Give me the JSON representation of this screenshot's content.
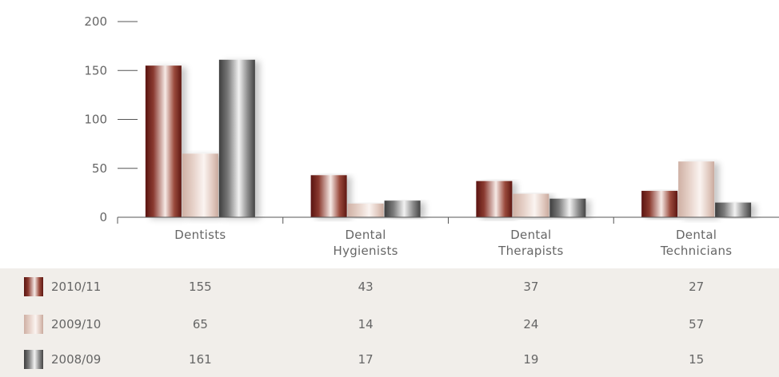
{
  "chart_data": {
    "type": "bar",
    "categories": [
      "Dentists",
      "Dental\nHygienists",
      "Dental\nTherapists",
      "Dental\nTechnicians"
    ],
    "series": [
      {
        "name": "2010/11",
        "values": [
          155,
          43,
          37,
          27
        ]
      },
      {
        "name": "2009/10",
        "values": [
          65,
          14,
          24,
          57
        ]
      },
      {
        "name": "2008/09",
        "values": [
          161,
          17,
          19,
          15
        ]
      }
    ],
    "ylim": [
      0,
      200
    ],
    "yticks": [
      0,
      50,
      100,
      150,
      200
    ],
    "xlabel": "",
    "ylabel": "",
    "grid": false,
    "legend": "table-below"
  },
  "table": {
    "rows": [
      {
        "label": "2010/11",
        "values": [
          "155",
          "43",
          "37",
          "27"
        ]
      },
      {
        "label": "2009/10",
        "values": [
          "65",
          "14",
          "24",
          "57"
        ]
      },
      {
        "label": "2008/09",
        "values": [
          "161",
          "17",
          "19",
          "15"
        ]
      }
    ]
  },
  "colors": {
    "series": [
      "#7a2a24",
      "#dcc3b8",
      "#6d6d6d"
    ],
    "table_background": "#f1eeea",
    "axis": "#555555"
  }
}
